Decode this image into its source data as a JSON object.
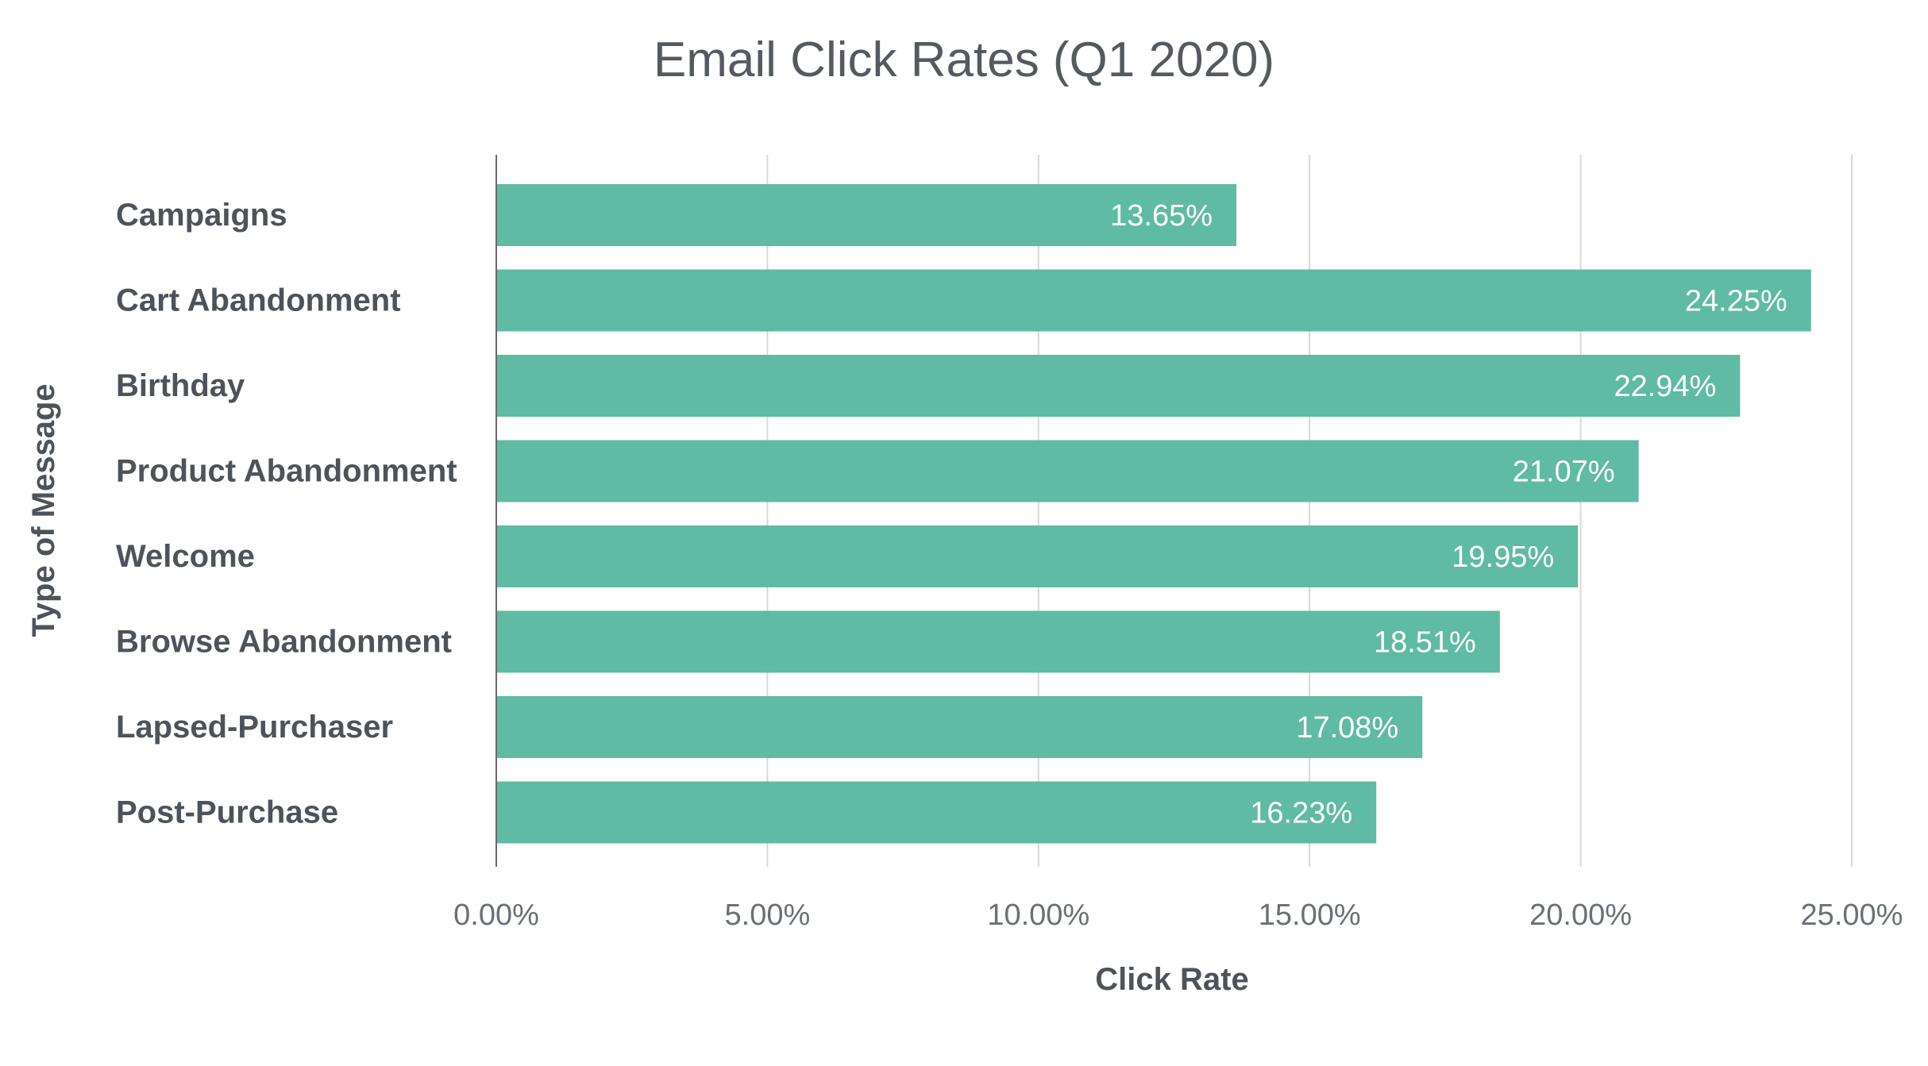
{
  "chart_data": {
    "type": "bar",
    "orientation": "horizontal",
    "title": "Email Click Rates (Q1 2020)",
    "xlabel": "Click Rate",
    "ylabel": "Type of Message",
    "categories": [
      "Campaigns",
      "Cart Abandonment",
      "Birthday",
      "Product Abandonment",
      "Welcome",
      "Browse Abandonment",
      "Lapsed-Purchaser",
      "Post-Purchase"
    ],
    "values": [
      13.65,
      24.25,
      22.94,
      21.07,
      19.95,
      18.51,
      17.08,
      16.23
    ],
    "value_labels": [
      "13.65%",
      "24.25%",
      "22.94%",
      "21.07%",
      "19.95%",
      "18.51%",
      "17.08%",
      "16.23%"
    ],
    "xlim": [
      0,
      25
    ],
    "x_ticks": [
      0,
      5,
      10,
      15,
      20,
      25
    ],
    "x_tick_labels": [
      "0.00%",
      "5.00%",
      "10.00%",
      "15.00%",
      "20.00%",
      "25.00%"
    ],
    "grid": "vertical",
    "legend": "none",
    "bar_color": "#5fbba3"
  }
}
